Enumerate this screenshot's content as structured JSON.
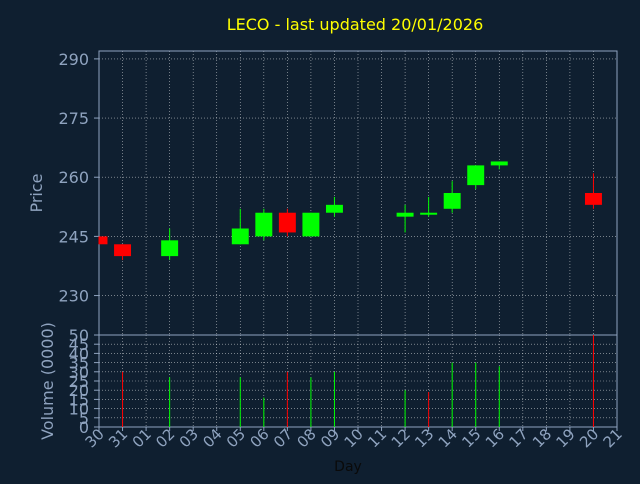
{
  "colors": {
    "background": "#0f1f30",
    "axis": "#8fa3bf",
    "grid": "#ffffff",
    "title": "#ffff00",
    "up": "#00ff00",
    "down": "#ff0000"
  },
  "chart_data": [
    {
      "type": "candlestick",
      "title": "LECO - last updated 20/01/2026",
      "xlabel": "",
      "ylabel": "Price",
      "ylim": [
        220,
        292
      ],
      "yticks": [
        230,
        245,
        260,
        275,
        290
      ],
      "grid": true,
      "candles": [
        {
          "day": "30",
          "open": 245,
          "high": 245,
          "low": 243,
          "close": 243
        },
        {
          "day": "31",
          "open": 243,
          "high": 243,
          "low": 239,
          "close": 240
        },
        {
          "day": "02",
          "open": 240,
          "high": 247,
          "low": 239,
          "close": 244
        },
        {
          "day": "05",
          "open": 243,
          "high": 252,
          "low": 243,
          "close": 247
        },
        {
          "day": "06",
          "open": 245,
          "high": 252,
          "low": 244,
          "close": 251
        },
        {
          "day": "07",
          "open": 251,
          "high": 252,
          "low": 245,
          "close": 246
        },
        {
          "day": "08",
          "open": 245,
          "high": 251,
          "low": 245,
          "close": 251
        },
        {
          "day": "09",
          "open": 251,
          "high": 255,
          "low": 250,
          "close": 253
        },
        {
          "day": "12",
          "open": 250,
          "high": 253,
          "low": 246,
          "close": 251
        },
        {
          "day": "13",
          "open": 251,
          "high": 255,
          "low": 250,
          "close": 251
        },
        {
          "day": "14",
          "open": 252,
          "high": 259,
          "low": 251,
          "close": 256
        },
        {
          "day": "15",
          "open": 258,
          "high": 263,
          "low": 257,
          "close": 263
        },
        {
          "day": "16",
          "open": 263,
          "high": 264,
          "low": 262,
          "close": 264
        },
        {
          "day": "20",
          "open": 256,
          "high": 261,
          "low": 252,
          "close": 253
        }
      ]
    },
    {
      "type": "bar",
      "title": "",
      "xlabel": "Day",
      "ylabel": "Volume (0000)",
      "ylim": [
        0,
        50
      ],
      "yticks": [
        0,
        5,
        10,
        15,
        20,
        25,
        30,
        35,
        40,
        45,
        50
      ],
      "grid": true,
      "categories": [
        "30",
        "31",
        "01",
        "02",
        "03",
        "04",
        "05",
        "06",
        "07",
        "08",
        "09",
        "10",
        "11",
        "12",
        "13",
        "14",
        "15",
        "16",
        "17",
        "18",
        "19",
        "20",
        "21"
      ],
      "volumes": [
        {
          "day": "31",
          "value": 30,
          "direction": "down"
        },
        {
          "day": "02",
          "value": 27,
          "direction": "up"
        },
        {
          "day": "05",
          "value": 27,
          "direction": "up"
        },
        {
          "day": "06",
          "value": 16,
          "direction": "up"
        },
        {
          "day": "07",
          "value": 30,
          "direction": "down"
        },
        {
          "day": "08",
          "value": 27,
          "direction": "up"
        },
        {
          "day": "09",
          "value": 30,
          "direction": "up"
        },
        {
          "day": "12",
          "value": 20,
          "direction": "up"
        },
        {
          "day": "13",
          "value": 19,
          "direction": "down"
        },
        {
          "day": "14",
          "value": 35,
          "direction": "up"
        },
        {
          "day": "15",
          "value": 35,
          "direction": "up"
        },
        {
          "day": "16",
          "value": 33,
          "direction": "up"
        },
        {
          "day": "20",
          "value": 50,
          "direction": "down"
        }
      ]
    }
  ]
}
